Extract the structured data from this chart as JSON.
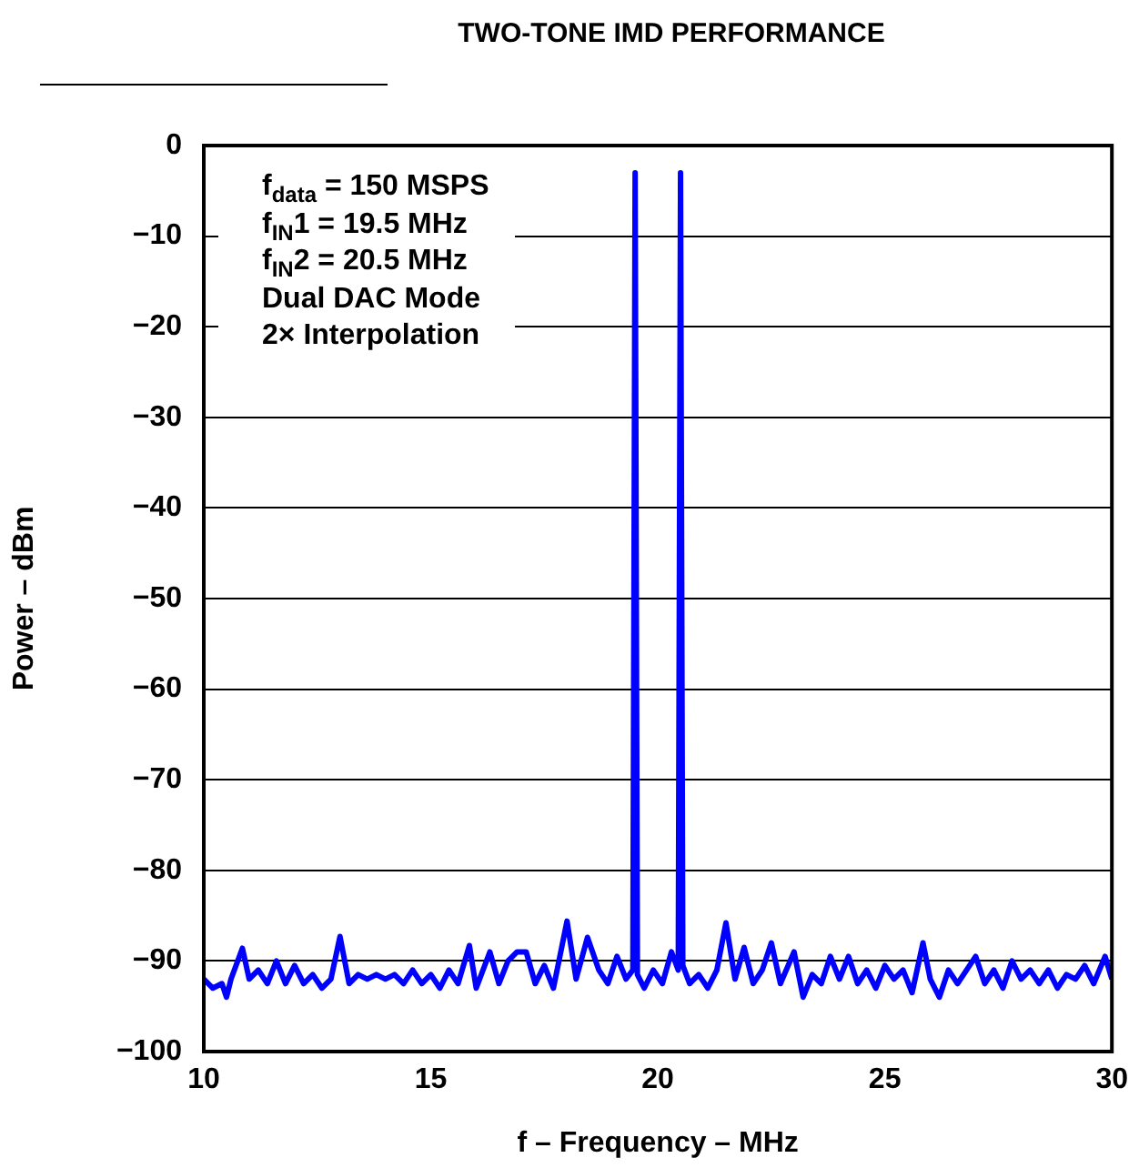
{
  "chart_data": {
    "type": "line",
    "title": "TWO-TONE IMD PERFORMANCE",
    "xlabel": "f – Frequency – MHz",
    "ylabel": "Power – dBm",
    "annotations": [
      "f$_{data}$ = 150 MSPS",
      "f$_{IN}$1 = 19.5 MHz",
      "f$_{IN}$2 = 20.5 MHz",
      "Dual DAC Mode",
      "2× Interpolation"
    ],
    "xlim": [
      10,
      30
    ],
    "xticks": [
      10,
      15,
      20,
      25,
      30
    ],
    "ylim": [
      -100,
      0
    ],
    "yticks": [
      -100,
      -90,
      -80,
      -70,
      -60,
      -50,
      -40,
      -30,
      -20,
      -10,
      0
    ],
    "grid": "y",
    "series": [
      {
        "color": "#0000ff",
        "x": [
          10,
          10.2,
          10.4,
          10.5,
          10.6,
          10.85,
          11.0,
          11.2,
          11.4,
          11.6,
          11.8,
          12.0,
          12.2,
          12.4,
          12.6,
          12.8,
          13.0,
          13.2,
          13.4,
          13.6,
          13.8,
          14.0,
          14.2,
          14.4,
          14.6,
          14.8,
          15.0,
          15.2,
          15.4,
          15.6,
          15.85,
          16.0,
          16.3,
          16.5,
          16.7,
          16.9,
          17.1,
          17.3,
          17.5,
          17.7,
          18.0,
          18.2,
          18.45,
          18.7,
          18.9,
          19.1,
          19.3,
          19.45,
          19.5,
          19.55,
          19.7,
          19.9,
          20.1,
          20.3,
          20.45,
          20.5,
          20.55,
          20.7,
          20.9,
          21.1,
          21.3,
          21.5,
          21.7,
          21.9,
          22.1,
          22.3,
          22.5,
          22.7,
          23.0,
          23.2,
          23.4,
          23.6,
          23.8,
          24.0,
          24.2,
          24.4,
          24.6,
          24.8,
          25.0,
          25.2,
          25.4,
          25.6,
          25.84,
          26.0,
          26.2,
          26.4,
          26.6,
          26.8,
          27.0,
          27.2,
          27.4,
          27.6,
          27.8,
          28.0,
          28.2,
          28.4,
          28.6,
          28.8,
          29.0,
          29.2,
          29.4,
          29.6,
          29.85,
          30
        ],
        "values": [
          -92,
          -93,
          -92.5,
          -94,
          -92,
          -88.6,
          -92,
          -91,
          -92.5,
          -90,
          -92.5,
          -90.5,
          -92.5,
          -91.5,
          -93,
          -92,
          -87.3,
          -92.5,
          -91.5,
          -92,
          -91.5,
          -92,
          -91.5,
          -92.5,
          -91,
          -92.5,
          -91.5,
          -93,
          -91,
          -92.5,
          -88.3,
          -93,
          -89,
          -92.5,
          -90,
          -89,
          -89,
          -92.5,
          -90.5,
          -93,
          -85.6,
          -92,
          -87.4,
          -91,
          -92.5,
          -89.5,
          -92,
          -91,
          -3,
          -91.5,
          -93,
          -91,
          -92.5,
          -89,
          -91,
          -3,
          -90.5,
          -92.5,
          -91.5,
          -93,
          -91,
          -85.8,
          -92,
          -88.5,
          -92.5,
          -91,
          -88,
          -92.5,
          -89,
          -94,
          -91.5,
          -92.5,
          -89.5,
          -92,
          -89.5,
          -92.5,
          -91,
          -93,
          -90.5,
          -92,
          -91,
          -93.5,
          -88,
          -92,
          -94,
          -91,
          -92.5,
          -91,
          -89.5,
          -92.5,
          -91,
          -93,
          -90,
          -92,
          -91,
          -92.5,
          -91,
          -93,
          -91.5,
          -92,
          -90.5,
          -92.5,
          -89.5,
          -92
        ]
      }
    ]
  }
}
